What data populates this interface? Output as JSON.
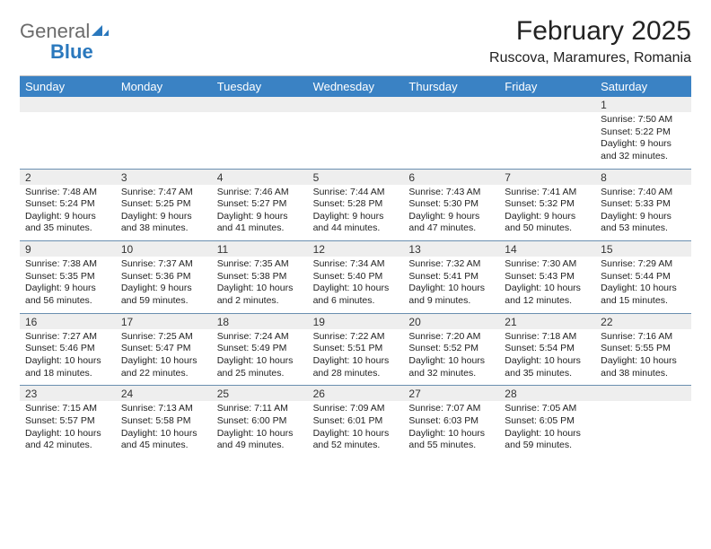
{
  "brand": {
    "general": "General",
    "blue": "Blue"
  },
  "title": "February 2025",
  "location": "Ruscova, Maramures, Romania",
  "colors": {
    "header_bg": "#3a82c4",
    "header_text": "#ffffff",
    "daynum_bg": "#eeeeee",
    "week_border": "#6a8fb0",
    "logo_gray": "#6b6b6b",
    "logo_blue": "#2a78bd"
  },
  "day_names": [
    "Sunday",
    "Monday",
    "Tuesday",
    "Wednesday",
    "Thursday",
    "Friday",
    "Saturday"
  ],
  "weeks": [
    {
      "nums": [
        "",
        "",
        "",
        "",
        "",
        "",
        "1"
      ],
      "cells": [
        null,
        null,
        null,
        null,
        null,
        null,
        {
          "sr": "Sunrise: 7:50 AM",
          "ss": "Sunset: 5:22 PM",
          "d1": "Daylight: 9 hours",
          "d2": "and 32 minutes."
        }
      ]
    },
    {
      "nums": [
        "2",
        "3",
        "4",
        "5",
        "6",
        "7",
        "8"
      ],
      "cells": [
        {
          "sr": "Sunrise: 7:48 AM",
          "ss": "Sunset: 5:24 PM",
          "d1": "Daylight: 9 hours",
          "d2": "and 35 minutes."
        },
        {
          "sr": "Sunrise: 7:47 AM",
          "ss": "Sunset: 5:25 PM",
          "d1": "Daylight: 9 hours",
          "d2": "and 38 minutes."
        },
        {
          "sr": "Sunrise: 7:46 AM",
          "ss": "Sunset: 5:27 PM",
          "d1": "Daylight: 9 hours",
          "d2": "and 41 minutes."
        },
        {
          "sr": "Sunrise: 7:44 AM",
          "ss": "Sunset: 5:28 PM",
          "d1": "Daylight: 9 hours",
          "d2": "and 44 minutes."
        },
        {
          "sr": "Sunrise: 7:43 AM",
          "ss": "Sunset: 5:30 PM",
          "d1": "Daylight: 9 hours",
          "d2": "and 47 minutes."
        },
        {
          "sr": "Sunrise: 7:41 AM",
          "ss": "Sunset: 5:32 PM",
          "d1": "Daylight: 9 hours",
          "d2": "and 50 minutes."
        },
        {
          "sr": "Sunrise: 7:40 AM",
          "ss": "Sunset: 5:33 PM",
          "d1": "Daylight: 9 hours",
          "d2": "and 53 minutes."
        }
      ]
    },
    {
      "nums": [
        "9",
        "10",
        "11",
        "12",
        "13",
        "14",
        "15"
      ],
      "cells": [
        {
          "sr": "Sunrise: 7:38 AM",
          "ss": "Sunset: 5:35 PM",
          "d1": "Daylight: 9 hours",
          "d2": "and 56 minutes."
        },
        {
          "sr": "Sunrise: 7:37 AM",
          "ss": "Sunset: 5:36 PM",
          "d1": "Daylight: 9 hours",
          "d2": "and 59 minutes."
        },
        {
          "sr": "Sunrise: 7:35 AM",
          "ss": "Sunset: 5:38 PM",
          "d1": "Daylight: 10 hours",
          "d2": "and 2 minutes."
        },
        {
          "sr": "Sunrise: 7:34 AM",
          "ss": "Sunset: 5:40 PM",
          "d1": "Daylight: 10 hours",
          "d2": "and 6 minutes."
        },
        {
          "sr": "Sunrise: 7:32 AM",
          "ss": "Sunset: 5:41 PM",
          "d1": "Daylight: 10 hours",
          "d2": "and 9 minutes."
        },
        {
          "sr": "Sunrise: 7:30 AM",
          "ss": "Sunset: 5:43 PM",
          "d1": "Daylight: 10 hours",
          "d2": "and 12 minutes."
        },
        {
          "sr": "Sunrise: 7:29 AM",
          "ss": "Sunset: 5:44 PM",
          "d1": "Daylight: 10 hours",
          "d2": "and 15 minutes."
        }
      ]
    },
    {
      "nums": [
        "16",
        "17",
        "18",
        "19",
        "20",
        "21",
        "22"
      ],
      "cells": [
        {
          "sr": "Sunrise: 7:27 AM",
          "ss": "Sunset: 5:46 PM",
          "d1": "Daylight: 10 hours",
          "d2": "and 18 minutes."
        },
        {
          "sr": "Sunrise: 7:25 AM",
          "ss": "Sunset: 5:47 PM",
          "d1": "Daylight: 10 hours",
          "d2": "and 22 minutes."
        },
        {
          "sr": "Sunrise: 7:24 AM",
          "ss": "Sunset: 5:49 PM",
          "d1": "Daylight: 10 hours",
          "d2": "and 25 minutes."
        },
        {
          "sr": "Sunrise: 7:22 AM",
          "ss": "Sunset: 5:51 PM",
          "d1": "Daylight: 10 hours",
          "d2": "and 28 minutes."
        },
        {
          "sr": "Sunrise: 7:20 AM",
          "ss": "Sunset: 5:52 PM",
          "d1": "Daylight: 10 hours",
          "d2": "and 32 minutes."
        },
        {
          "sr": "Sunrise: 7:18 AM",
          "ss": "Sunset: 5:54 PM",
          "d1": "Daylight: 10 hours",
          "d2": "and 35 minutes."
        },
        {
          "sr": "Sunrise: 7:16 AM",
          "ss": "Sunset: 5:55 PM",
          "d1": "Daylight: 10 hours",
          "d2": "and 38 minutes."
        }
      ]
    },
    {
      "nums": [
        "23",
        "24",
        "25",
        "26",
        "27",
        "28",
        ""
      ],
      "cells": [
        {
          "sr": "Sunrise: 7:15 AM",
          "ss": "Sunset: 5:57 PM",
          "d1": "Daylight: 10 hours",
          "d2": "and 42 minutes."
        },
        {
          "sr": "Sunrise: 7:13 AM",
          "ss": "Sunset: 5:58 PM",
          "d1": "Daylight: 10 hours",
          "d2": "and 45 minutes."
        },
        {
          "sr": "Sunrise: 7:11 AM",
          "ss": "Sunset: 6:00 PM",
          "d1": "Daylight: 10 hours",
          "d2": "and 49 minutes."
        },
        {
          "sr": "Sunrise: 7:09 AM",
          "ss": "Sunset: 6:01 PM",
          "d1": "Daylight: 10 hours",
          "d2": "and 52 minutes."
        },
        {
          "sr": "Sunrise: 7:07 AM",
          "ss": "Sunset: 6:03 PM",
          "d1": "Daylight: 10 hours",
          "d2": "and 55 minutes."
        },
        {
          "sr": "Sunrise: 7:05 AM",
          "ss": "Sunset: 6:05 PM",
          "d1": "Daylight: 10 hours",
          "d2": "and 59 minutes."
        },
        null
      ]
    }
  ]
}
